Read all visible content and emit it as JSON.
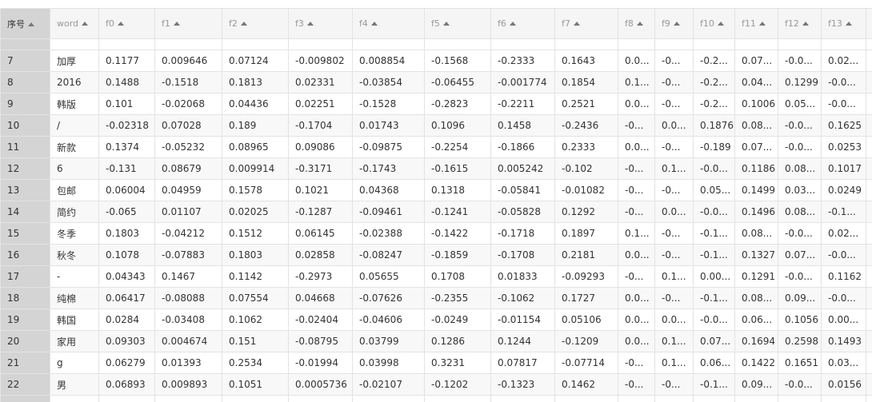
{
  "table": {
    "columns": [
      "序号",
      "word",
      "f0",
      "f1",
      "f2",
      "f3",
      "f4",
      "f5",
      "f6",
      "f7",
      "f8",
      "f9",
      "f10",
      "f11",
      "f12",
      "f13"
    ],
    "rows": [
      [
        "7",
        "加厚",
        "0.1177",
        "0.009646",
        "0.07124",
        "-0.009802",
        "0.008854",
        "-0.1568",
        "-0.2333",
        "0.1643",
        "0.0...",
        "-0...",
        "-0.2...",
        "0.07...",
        "-0.0...",
        "0.02..."
      ],
      [
        "8",
        "2016",
        "0.1488",
        "-0.1518",
        "0.1813",
        "0.02331",
        "-0.03854",
        "-0.06455",
        "-0.001774",
        "0.1854",
        "0.1...",
        "-0...",
        "-0.2...",
        "0.04...",
        "0.1299",
        "-0.0..."
      ],
      [
        "9",
        "韩版",
        "0.101",
        "-0.02068",
        "0.04436",
        "0.02251",
        "-0.1528",
        "-0.2823",
        "-0.2211",
        "0.2521",
        "0.0...",
        "-0...",
        "-0.2...",
        "0.1006",
        "0.05...",
        "-0.0..."
      ],
      [
        "10",
        "/",
        "-0.02318",
        "0.07028",
        "0.189",
        "-0.1704",
        "0.01743",
        "0.1096",
        "0.1458",
        "-0.2436",
        "-0...",
        "0.0...",
        "0.1876",
        "0.08...",
        "-0.0...",
        "0.1625"
      ],
      [
        "11",
        "新款",
        "0.1374",
        "-0.05232",
        "0.08965",
        "0.09086",
        "-0.09875",
        "-0.2254",
        "-0.1866",
        "0.2333",
        "0.0...",
        "-0...",
        "-0.189",
        "0.07...",
        "-0.0...",
        "0.0253"
      ],
      [
        "12",
        "6",
        "-0.131",
        "0.08679",
        "0.009914",
        "-0.3171",
        "-0.1743",
        "-0.1615",
        "0.005242",
        "-0.102",
        "-0...",
        "0.1...",
        "-0.0...",
        "0.1186",
        "0.08...",
        "0.1017"
      ],
      [
        "13",
        "包邮",
        "0.06004",
        "0.04959",
        "0.1578",
        "0.1021",
        "0.04368",
        "0.1318",
        "-0.05841",
        "-0.01082",
        "-0...",
        "-0...",
        "0.05...",
        "0.1499",
        "0.03...",
        "0.0249"
      ],
      [
        "14",
        "简约",
        "-0.065",
        "0.01107",
        "0.02025",
        "-0.1287",
        "-0.09461",
        "-0.1241",
        "-0.05828",
        "0.1292",
        "-0...",
        "0.0...",
        "-0.0...",
        "0.1496",
        "0.08...",
        "-0.1..."
      ],
      [
        "15",
        "冬季",
        "0.1803",
        "-0.04212",
        "0.1512",
        "0.06145",
        "-0.02388",
        "-0.1422",
        "-0.1718",
        "0.1897",
        "0.1...",
        "-0...",
        "-0.1...",
        "0.08...",
        "-0.0...",
        "0.02..."
      ],
      [
        "16",
        "秋冬",
        "0.1078",
        "-0.07883",
        "0.1803",
        "0.02858",
        "-0.08247",
        "-0.1859",
        "-0.1708",
        "0.2181",
        "0.0...",
        "-0...",
        "-0.1...",
        "0.1327",
        "0.07...",
        "-0.0..."
      ],
      [
        "17",
        "-",
        "0.04343",
        "0.1467",
        "0.1142",
        "-0.2973",
        "0.05655",
        "0.1708",
        "0.01833",
        "-0.09293",
        "-0...",
        "0.1...",
        "0.00...",
        "0.1291",
        "-0.0...",
        "0.1162"
      ],
      [
        "18",
        "纯棉",
        "0.06417",
        "-0.08088",
        "0.07554",
        "0.04668",
        "-0.07626",
        "-0.2355",
        "-0.1062",
        "0.1727",
        "0.0...",
        "-0...",
        "-0.1...",
        "0.08...",
        "0.09...",
        "-0.0..."
      ],
      [
        "19",
        "韩国",
        "0.0284",
        "-0.03408",
        "0.1062",
        "-0.02404",
        "-0.04606",
        "-0.0249",
        "-0.01154",
        "0.05106",
        "0.0...",
        "0.0...",
        "-0.0...",
        "0.06...",
        "0.1056",
        "0.00..."
      ],
      [
        "20",
        "家用",
        "0.09303",
        "0.004674",
        "0.151",
        "-0.08795",
        "0.03799",
        "0.1286",
        "0.1244",
        "-0.1209",
        "0.0...",
        "0.1...",
        "0.07...",
        "0.1694",
        "0.2598",
        "0.1493"
      ],
      [
        "21",
        "g",
        "0.06279",
        "0.01393",
        "0.2534",
        "-0.01994",
        "0.03998",
        "0.3231",
        "0.07817",
        "-0.07714",
        "-0...",
        "0.1...",
        "0.06...",
        "0.1422",
        "0.1651",
        "0.03..."
      ],
      [
        "22",
        "男",
        "0.06893",
        "0.009893",
        "0.1051",
        "0.0005736",
        "-0.02107",
        "-0.1202",
        "-0.1323",
        "0.1462",
        "-0...",
        "-0...",
        "-0.1...",
        "0.09...",
        "-0.0...",
        "0.0156"
      ]
    ]
  }
}
